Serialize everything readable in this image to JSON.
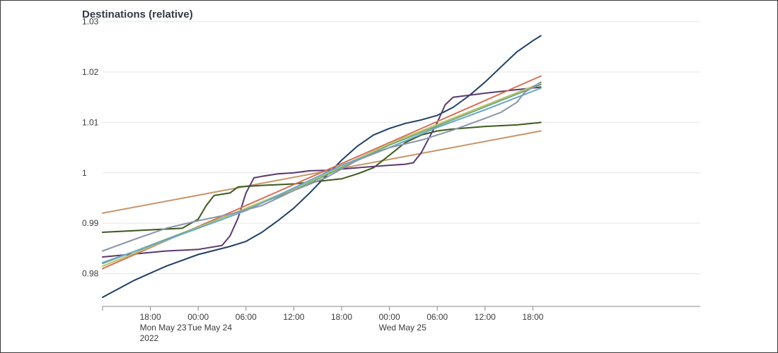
{
  "title": "Destinations (relative)",
  "chart_data": {
    "type": "line",
    "title": "Destinations (relative)",
    "xlabel": "",
    "ylabel": "",
    "x_range_hours": [
      -12,
      63
    ],
    "ylim": [
      0.9735,
      1.0305
    ],
    "grid": "horizontal",
    "y_ticks": [
      {
        "value": 0.98,
        "label": "0.98"
      },
      {
        "value": 0.99,
        "label": "0.99"
      },
      {
        "value": 1.0,
        "label": "1"
      },
      {
        "value": 1.01,
        "label": "1.01"
      },
      {
        "value": 1.02,
        "label": "1.02"
      },
      {
        "value": 1.03,
        "label": "1.03"
      }
    ],
    "x_ticks": [
      {
        "hour": -6,
        "label": "18:00",
        "sub": "Mon May 23",
        "sub2": "2022"
      },
      {
        "hour": 0,
        "label": "00:00",
        "sub": "Tue May 24",
        "sub2": ""
      },
      {
        "hour": 6,
        "label": "06:00",
        "sub": "",
        "sub2": ""
      },
      {
        "hour": 12,
        "label": "12:00",
        "sub": "",
        "sub2": ""
      },
      {
        "hour": 18,
        "label": "18:00",
        "sub": "",
        "sub2": ""
      },
      {
        "hour": 24,
        "label": "00:00",
        "sub": "Wed May 25",
        "sub2": ""
      },
      {
        "hour": 30,
        "label": "06:00",
        "sub": "",
        "sub2": ""
      },
      {
        "hour": 36,
        "label": "12:00",
        "sub": "",
        "sub2": ""
      },
      {
        "hour": 42,
        "label": "18:00",
        "sub": "",
        "sub2": ""
      }
    ],
    "series": [
      {
        "color": "#1f3f66",
        "points": [
          [
            -12,
            0.9753
          ],
          [
            -8,
            0.9787
          ],
          [
            -4,
            0.9815
          ],
          [
            0,
            0.9838
          ],
          [
            4,
            0.9854
          ],
          [
            6,
            0.9864
          ],
          [
            8,
            0.9882
          ],
          [
            10,
            0.9905
          ],
          [
            12,
            0.993
          ],
          [
            14,
            0.996
          ],
          [
            16,
            0.9993
          ],
          [
            18,
            1.0025
          ],
          [
            20,
            1.0053
          ],
          [
            22,
            1.0075
          ],
          [
            24,
            1.0088
          ],
          [
            26,
            1.0098
          ],
          [
            28,
            1.0105
          ],
          [
            30,
            1.0114
          ],
          [
            32,
            1.013
          ],
          [
            34,
            1.0153
          ],
          [
            36,
            1.018
          ],
          [
            38,
            1.021
          ],
          [
            40,
            1.024
          ],
          [
            42,
            1.0262
          ],
          [
            43,
            1.0272
          ]
        ]
      },
      {
        "color": "#c8966b",
        "points": [
          [
            -12,
            0.992
          ],
          [
            43,
            1.0083
          ]
        ]
      },
      {
        "color": "#3d5a1e",
        "points": [
          [
            -12,
            0.9882
          ],
          [
            -2,
            0.989
          ],
          [
            0,
            0.9908
          ],
          [
            1,
            0.9935
          ],
          [
            2,
            0.9955
          ],
          [
            4,
            0.996
          ],
          [
            5,
            0.9972
          ],
          [
            8,
            0.9975
          ],
          [
            12,
            0.9978
          ],
          [
            18,
            0.9988
          ],
          [
            20,
            0.9998
          ],
          [
            22,
            1.001
          ],
          [
            24,
            1.0035
          ],
          [
            26,
            1.006
          ],
          [
            28,
            1.0075
          ],
          [
            30,
            1.0083
          ],
          [
            32,
            1.0087
          ],
          [
            36,
            1.0092
          ],
          [
            40,
            1.0095
          ],
          [
            43,
            1.01
          ]
        ]
      },
      {
        "color": "#5a3a6e",
        "points": [
          [
            -12,
            0.9833
          ],
          [
            -4,
            0.9845
          ],
          [
            0,
            0.9848
          ],
          [
            3,
            0.9856
          ],
          [
            4,
            0.9875
          ],
          [
            5,
            0.991
          ],
          [
            6,
            0.996
          ],
          [
            7,
            0.999
          ],
          [
            8,
            0.9993
          ],
          [
            10,
            0.9998
          ],
          [
            12,
            1.0
          ],
          [
            14,
            1.0004
          ],
          [
            16,
            1.0005
          ],
          [
            20,
            1.001
          ],
          [
            24,
            1.0015
          ],
          [
            26,
            1.0017
          ],
          [
            27,
            1.002
          ],
          [
            28,
            1.004
          ],
          [
            29,
            1.007
          ],
          [
            30,
            1.01
          ],
          [
            31,
            1.0135
          ],
          [
            32,
            1.015
          ],
          [
            36,
            1.0158
          ],
          [
            40,
            1.0165
          ],
          [
            43,
            1.017
          ]
        ]
      },
      {
        "color": "#d67057",
        "points": [
          [
            -12,
            0.981
          ],
          [
            43,
            1.0192
          ]
        ]
      },
      {
        "color": "#74a67a",
        "points": [
          [
            -12,
            0.982
          ],
          [
            12,
            0.9965
          ],
          [
            24,
            1.0055
          ],
          [
            43,
            1.0175
          ]
        ]
      },
      {
        "color": "#b8c46c",
        "points": [
          [
            -12,
            0.9815
          ],
          [
            12,
            0.9968
          ],
          [
            24,
            1.0058
          ],
          [
            43,
            1.0178
          ]
        ]
      },
      {
        "color": "#6aa7c8",
        "points": [
          [
            -12,
            0.9822
          ],
          [
            -6,
            0.9855
          ],
          [
            0,
            0.989
          ],
          [
            6,
            0.9925
          ],
          [
            12,
            0.997
          ],
          [
            18,
            1.0015
          ],
          [
            24,
            1.005
          ],
          [
            30,
            1.009
          ],
          [
            36,
            1.0125
          ],
          [
            43,
            1.0168
          ]
        ]
      },
      {
        "color": "#8a95a8",
        "points": [
          [
            -12,
            0.9845
          ],
          [
            -8,
            0.9868
          ],
          [
            -4,
            0.989
          ],
          [
            0,
            0.9905
          ],
          [
            4,
            0.9918
          ],
          [
            8,
            0.9935
          ],
          [
            12,
            0.9965
          ],
          [
            16,
            0.999
          ],
          [
            20,
            1.0025
          ],
          [
            24,
            1.005
          ],
          [
            28,
            1.0065
          ],
          [
            32,
            1.0085
          ],
          [
            36,
            1.0108
          ],
          [
            38,
            1.012
          ],
          [
            40,
            1.014
          ],
          [
            41,
            1.016
          ],
          [
            43,
            1.018
          ]
        ]
      }
    ]
  }
}
